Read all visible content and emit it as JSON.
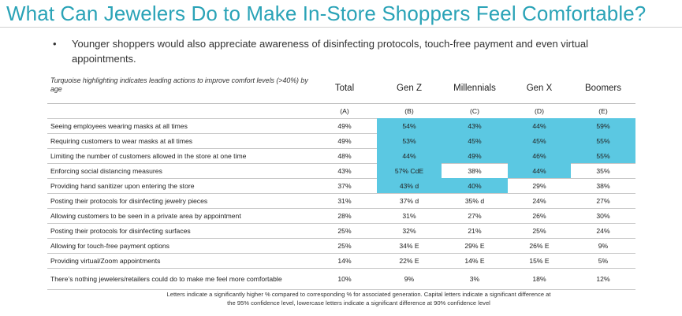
{
  "title": "What Can Jewelers Do to Make In-Store Shoppers Feel Comfortable?",
  "bullet": {
    "symbol": "•",
    "text": "Younger shoppers would also appreciate awareness of disinfecting protocols, touch-free payment and even virtual appointments."
  },
  "table": {
    "note": "Turquoise highlighting indicates leading actions to improve comfort levels (>40%) by age",
    "highlight_color": "#5bc8e2",
    "columns": [
      "Total",
      "Gen Z",
      "Millennials",
      "Gen X",
      "Boomers"
    ],
    "column_letters": [
      "(A)",
      "(B)",
      "(C)",
      "(D)",
      "(E)"
    ],
    "rows": [
      {
        "label": "Seeing employees wearing masks at all times",
        "values": [
          "49%",
          "54%",
          "43%",
          "44%",
          "59%"
        ],
        "highlight": [
          false,
          true,
          true,
          true,
          true
        ]
      },
      {
        "label": "Requiring customers to wear masks at all times",
        "values": [
          "49%",
          "53%",
          "45%",
          "45%",
          "55%"
        ],
        "highlight": [
          false,
          true,
          true,
          true,
          true
        ]
      },
      {
        "label": "Limiting the number of customers allowed in the store at one time",
        "values": [
          "48%",
          "44%",
          "49%",
          "46%",
          "55%"
        ],
        "highlight": [
          false,
          true,
          true,
          true,
          true
        ]
      },
      {
        "label": "Enforcing social distancing measures",
        "values": [
          "43%",
          "57% CdE",
          "38%",
          "44%",
          "35%"
        ],
        "highlight": [
          false,
          true,
          false,
          true,
          false
        ]
      },
      {
        "label": "Providing hand sanitizer upon entering the store",
        "values": [
          "37%",
          "43% d",
          "40%",
          "29%",
          "38%"
        ],
        "highlight": [
          false,
          true,
          true,
          false,
          false
        ]
      },
      {
        "label": "Posting their protocols for disinfecting jewelry pieces",
        "values": [
          "31%",
          "37% d",
          "35% d",
          "24%",
          "27%"
        ],
        "highlight": [
          false,
          false,
          false,
          false,
          false
        ]
      },
      {
        "label": "Allowing customers to be seen in a private area by appointment",
        "values": [
          "28%",
          "31%",
          "27%",
          "26%",
          "30%"
        ],
        "highlight": [
          false,
          false,
          false,
          false,
          false
        ]
      },
      {
        "label": "Posting their protocols for disinfecting surfaces",
        "values": [
          "25%",
          "32%",
          "21%",
          "25%",
          "24%"
        ],
        "highlight": [
          false,
          false,
          false,
          false,
          false
        ]
      },
      {
        "label": "Allowing for touch-free payment options",
        "values": [
          "25%",
          "34% E",
          "29% E",
          "26% E",
          "9%"
        ],
        "highlight": [
          false,
          false,
          false,
          false,
          false
        ]
      },
      {
        "label": "Providing virtual/Zoom appointments",
        "values": [
          "14%",
          "22% E",
          "14% E",
          "15% E",
          "5%"
        ],
        "highlight": [
          false,
          false,
          false,
          false,
          false
        ]
      },
      {
        "label": "There’s nothing jewelers/retailers could do to make me feel more comfortable",
        "values": [
          "10%",
          "9%",
          "3%",
          "18%",
          "12%"
        ],
        "highlight": [
          false,
          false,
          false,
          false,
          false
        ]
      }
    ]
  },
  "footnote": "Letters indicate a significantly higher % compared to corresponding % for associated generation. Capital letters indicate a significant difference at the 95% confidence level, lowercase letters indicate a significant difference at 90% confidence level"
}
